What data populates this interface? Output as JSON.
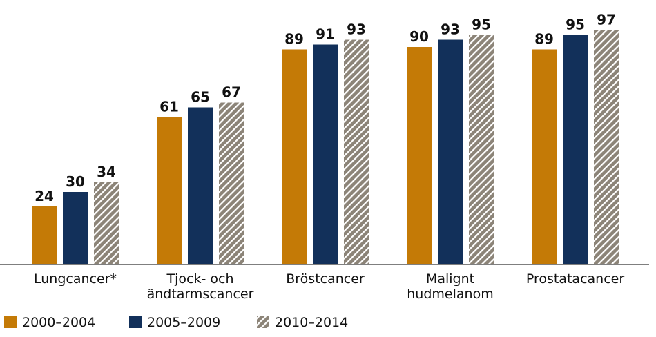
{
  "chart_data": {
    "type": "bar",
    "categories": [
      [
        "Lungcancer*"
      ],
      [
        "Tjock- och",
        "ändtarmscancer"
      ],
      [
        "Bröstcancer"
      ],
      [
        "Malignt",
        "hudmelanom"
      ],
      [
        "Prostatacancer"
      ]
    ],
    "series": [
      {
        "name": "2000–2004",
        "values": [
          24,
          61,
          89,
          90,
          89
        ],
        "color": "#c47a06",
        "pattern": "solid"
      },
      {
        "name": "2005–2009",
        "values": [
          30,
          65,
          91,
          93,
          95
        ],
        "color": "#12305a",
        "pattern": "solid"
      },
      {
        "name": "2010–2014",
        "values": [
          34,
          67,
          93,
          95,
          97
        ],
        "color": "#8c8478",
        "pattern": "hatched"
      }
    ],
    "ylim": [
      0,
      100
    ],
    "grid": false,
    "legend_position": "bottom-left"
  }
}
